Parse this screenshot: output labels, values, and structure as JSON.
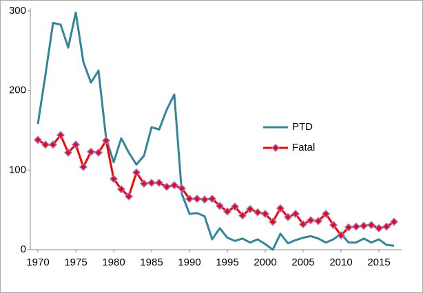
{
  "chart_data": {
    "type": "line",
    "x": [
      1970,
      1971,
      1972,
      1973,
      1974,
      1975,
      1976,
      1977,
      1978,
      1979,
      1980,
      1981,
      1982,
      1983,
      1984,
      1985,
      1986,
      1987,
      1988,
      1989,
      1990,
      1991,
      1992,
      1993,
      1994,
      1995,
      1996,
      1997,
      1998,
      1999,
      2000,
      2001,
      2002,
      2003,
      2004,
      2005,
      2006,
      2007,
      2008,
      2009,
      2010,
      2011,
      2012,
      2013,
      2014,
      2015,
      2016,
      2017
    ],
    "series": [
      {
        "name": "PTD",
        "color": "#31859c",
        "marker": false,
        "values": [
          158,
          220,
          285,
          283,
          254,
          298,
          236,
          210,
          225,
          140,
          110,
          140,
          122,
          107,
          118,
          154,
          151,
          176,
          195,
          70,
          45,
          46,
          42,
          13,
          27,
          15,
          11,
          14,
          9,
          13,
          7,
          0,
          20,
          8,
          12,
          15,
          17,
          14,
          9,
          13,
          20,
          9,
          9,
          14,
          9,
          13,
          6,
          5
        ]
      },
      {
        "name": "Fatal",
        "color": "#ff0000",
        "marker": true,
        "values": [
          138,
          132,
          132,
          144,
          122,
          132,
          104,
          123,
          122,
          137,
          89,
          76,
          67,
          97,
          83,
          84,
          84,
          79,
          81,
          77,
          64,
          64,
          63,
          64,
          55,
          48,
          54,
          43,
          51,
          47,
          45,
          35,
          52,
          41,
          45,
          32,
          37,
          36,
          45,
          31,
          18,
          28,
          29,
          30,
          31,
          27,
          29,
          35
        ]
      }
    ],
    "xlim": [
      1969,
      2018
    ],
    "xticks": [
      1970,
      1975,
      1980,
      1985,
      1990,
      1995,
      2000,
      2005,
      2010,
      2015
    ],
    "ylim": [
      0,
      300
    ],
    "yticks": [
      0,
      100,
      200,
      300
    ],
    "grid": false,
    "legend": "center-right"
  }
}
